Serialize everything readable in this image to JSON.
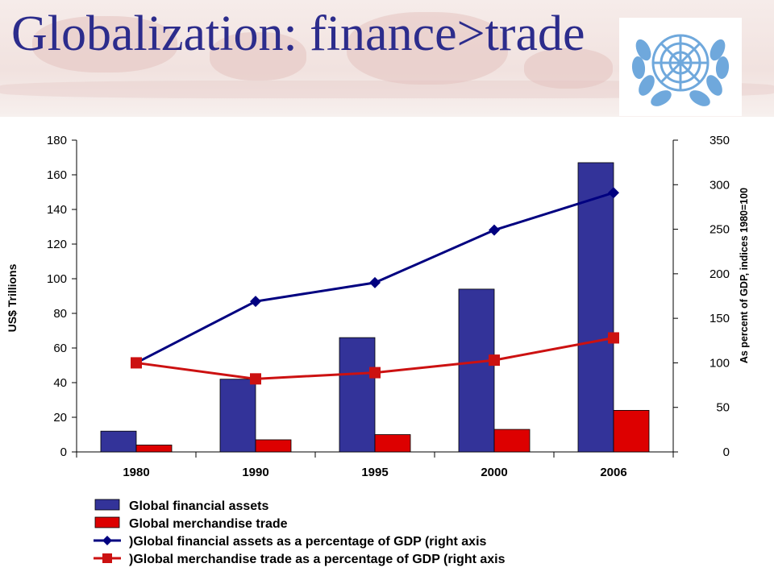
{
  "slide": {
    "title": "Globalization: finance>trade"
  },
  "colors": {
    "title": "#2c2c8c",
    "bar_assets": "#333399",
    "bar_trade": "#dd0000",
    "line_assets": "#000080",
    "line_trade": "#cc1111",
    "un_blue": "#6fa8dc"
  },
  "chart_data": {
    "type": "bar",
    "categories": [
      "1980",
      "1990",
      "1995",
      "2000",
      "2006"
    ],
    "series": [
      {
        "name": "Global financial assets",
        "kind": "bar",
        "axis": "left",
        "values": [
          12,
          42,
          66,
          94,
          167
        ]
      },
      {
        "name": "Global merchandise trade",
        "kind": "bar",
        "axis": "left",
        "values": [
          4,
          7,
          10,
          13,
          24
        ]
      },
      {
        "name": ")Global financial assets as a percentage of GDP (right axis",
        "kind": "line",
        "axis": "right",
        "marker": "diamond",
        "values": [
          100,
          169,
          190,
          249,
          291
        ]
      },
      {
        "name": ")Global merchandise trade as a percentage of GDP (right axis",
        "kind": "line",
        "axis": "right",
        "marker": "square",
        "values": [
          100,
          82,
          89,
          103,
          128
        ]
      }
    ],
    "ylabel": "US$ Trillions",
    "ylim": [
      0,
      180
    ],
    "yticks": [
      0,
      20,
      40,
      60,
      80,
      100,
      120,
      140,
      160,
      180
    ],
    "y2label": "As percent of GDP, indices 1980=100",
    "y2lim": [
      0,
      350
    ],
    "y2ticks": [
      0,
      50,
      100,
      150,
      200,
      250,
      300,
      350
    ],
    "grid": false,
    "legend_position": "bottom"
  }
}
